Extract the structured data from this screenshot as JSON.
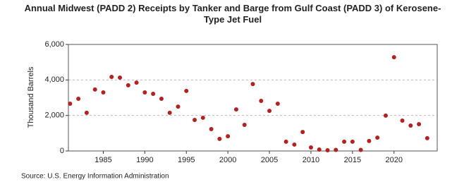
{
  "chart_data": {
    "type": "scatter",
    "title": "Annual Midwest (PADD 2) Receipts by Tanker and Barge from Gulf Coast (PADD 3) of Kerosene-Type Jet Fuel",
    "y_label": "Thousand Barrels",
    "source": "Source: U.S. Energy Information Administration",
    "x": [
      1981,
      1982,
      1983,
      1984,
      1985,
      1986,
      1987,
      1988,
      1989,
      1990,
      1991,
      1992,
      1993,
      1994,
      1995,
      1996,
      1997,
      1998,
      1999,
      2000,
      2001,
      2002,
      2003,
      2004,
      2005,
      2006,
      2007,
      2008,
      2009,
      2010,
      2011,
      2012,
      2013,
      2014,
      2015,
      2016,
      2017,
      2018,
      2019,
      2020,
      2021,
      2022,
      2023,
      2024
    ],
    "values": [
      2660,
      2940,
      2150,
      3460,
      3300,
      4170,
      4130,
      3700,
      3850,
      3300,
      3220,
      2940,
      2150,
      2500,
      3380,
      1750,
      1870,
      1230,
      680,
      830,
      2340,
      1470,
      3770,
      2820,
      2260,
      2660,
      520,
      360,
      1070,
      200,
      80,
      40,
      60,
      520,
      520,
      60,
      560,
      750,
      1990,
      5280,
      1710,
      1430,
      1510,
      720
    ],
    "color": "#b22222",
    "xlim": [
      1980.8,
      2025.2
    ],
    "xticks": [
      1985,
      1990,
      1995,
      2000,
      2005,
      2010,
      2015,
      2020
    ],
    "ylim": [
      0,
      6000
    ],
    "yticks": [
      0,
      {
        "value": 2000,
        "label": "2,000"
      },
      {
        "value": 4000,
        "label": "4,000"
      },
      {
        "value": 6000,
        "label": "6,000"
      }
    ],
    "grid": true
  }
}
